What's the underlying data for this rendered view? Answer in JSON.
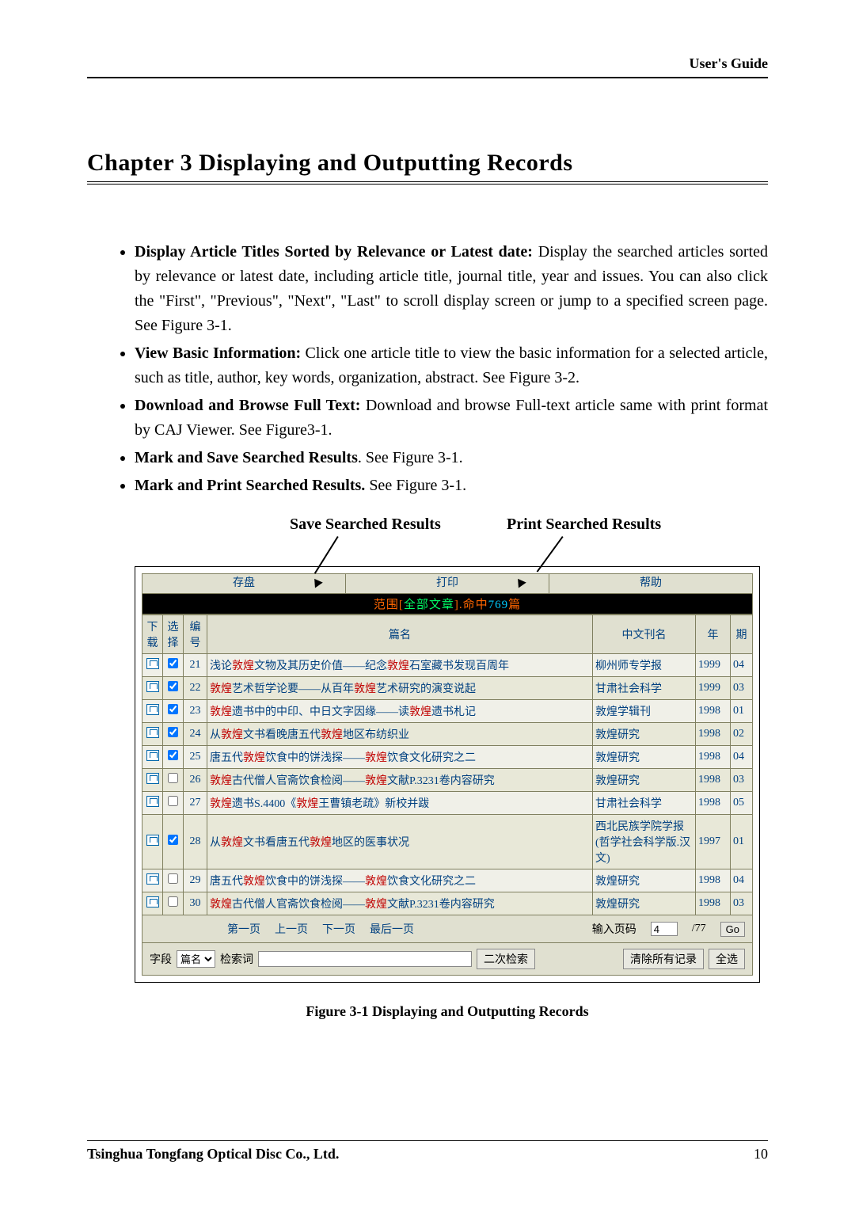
{
  "header_right": "User's Guide",
  "chapter_title": "Chapter 3   Displaying and Outputting Records",
  "bullets": [
    {
      "bold": "Display Article Titles Sorted by Relevance or Latest date:",
      "text": " Display the searched articles sorted by relevance or latest date, including article title, journal title, year and issues. You can also click the \"First\", \"Previous\", \"Next\", \"Last\" to scroll display screen or jump to a specified screen page. See Figure 3-1."
    },
    {
      "bold": "View Basic Information:",
      "text": " Click one article title to view the basic information for a selected article, such as title, author, key words, organization, abstract. See Figure 3-2."
    },
    {
      "bold": "Download and Browse Full Text:",
      "text": " Download and browse Full-text article same with print format by CAJ Viewer. See Figure3-1."
    },
    {
      "bold": "Mark and Save Searched Results",
      "text": ". See Figure 3-1."
    },
    {
      "bold": "Mark and Print Searched Results.",
      "text": " See Figure 3-1."
    }
  ],
  "annotation_save": "Save Searched Results",
  "annotation_print": "Print Searched Results",
  "toolbar": {
    "save": "存盘",
    "print": "打印",
    "help": "帮助"
  },
  "range_prefix": "范围[",
  "range_mid": "全部文章",
  "range_suffix": "].命中",
  "range_count": "769",
  "range_unit": "篇",
  "table_headers": {
    "download": "下载",
    "select": "选择",
    "no": "编号",
    "title": "篇名",
    "journal": "中文刊名",
    "year": "年",
    "issue": "期"
  },
  "rows": [
    {
      "checked": true,
      "no": "21",
      "pre": "浅论",
      "key": "敦煌",
      "mid": "文物及其历史价值——纪念",
      "key2": "敦煌",
      "post": "石室藏书发现百周年",
      "journal": "柳州师专学报",
      "year": "1999",
      "issue": "04"
    },
    {
      "checked": true,
      "no": "22",
      "pre": "",
      "key": "敦煌",
      "mid": "艺术哲学论要——从百年",
      "key2": "敦煌",
      "post": "艺术研究的演变说起",
      "journal": "甘肃社会科学",
      "year": "1999",
      "issue": "03"
    },
    {
      "checked": true,
      "no": "23",
      "pre": "",
      "key": "敦煌",
      "mid": "遗书中的中印、中日文字因缘——读",
      "key2": "敦煌",
      "post": "遗书札记",
      "journal": "敦煌学辑刊",
      "year": "1998",
      "issue": "01"
    },
    {
      "checked": true,
      "no": "24",
      "pre": "从",
      "key": "敦煌",
      "mid": "文书看晚唐五代",
      "key2": "敦煌",
      "post": "地区布纺织业",
      "journal": "敦煌研究",
      "year": "1998",
      "issue": "02"
    },
    {
      "checked": true,
      "no": "25",
      "pre": "唐五代",
      "key": "敦煌",
      "mid": "饮食中的饼浅探——",
      "key2": "敦煌",
      "post": "饮食文化研究之二",
      "journal": "敦煌研究",
      "year": "1998",
      "issue": "04"
    },
    {
      "checked": false,
      "no": "26",
      "pre": "",
      "key": "敦煌",
      "mid": "古代僧人官斋饮食检阅——",
      "key2": "敦煌",
      "post": "文献P.3231卷内容研究",
      "journal": "敦煌研究",
      "year": "1998",
      "issue": "03"
    },
    {
      "checked": false,
      "no": "27",
      "pre": "",
      "key": "敦煌",
      "mid": "遗书S.4400《",
      "key2": "敦煌",
      "post": "王曹镇老疏》新校并跋",
      "journal": "甘肃社会科学",
      "year": "1998",
      "issue": "05"
    },
    {
      "checked": true,
      "no": "28",
      "pre": "从",
      "key": "敦煌",
      "mid": "文书看唐五代",
      "key2": "敦煌",
      "post": "地区的医事状况",
      "journal": "西北民族学院学报(哲学社会科学版.汉文)",
      "year": "1997",
      "issue": "01"
    },
    {
      "checked": false,
      "no": "29",
      "pre": "唐五代",
      "key": "敦煌",
      "mid": "饮食中的饼浅探——",
      "key2": "敦煌",
      "post": "饮食文化研究之二",
      "journal": "敦煌研究",
      "year": "1998",
      "issue": "04"
    },
    {
      "checked": false,
      "no": "30",
      "pre": "",
      "key": "敦煌",
      "mid": "古代僧人官斋饮食检阅——",
      "key2": "敦煌",
      "post": "文献P.3231卷内容研究",
      "journal": "敦煌研究",
      "year": "1998",
      "issue": "03"
    }
  ],
  "pager": {
    "first": "第一页",
    "prev": "上一页",
    "next": "下一页",
    "last": "最后一页",
    "goto_label": "输入页码",
    "page_value": "4",
    "total": "/77",
    "go": "Go"
  },
  "filter": {
    "field_label": "字段",
    "field_value": "篇名",
    "kw_label": "检索词",
    "research": "二次检索",
    "clear": "清除所有记录",
    "select_all": "全选"
  },
  "fig_caption": "Figure 3-1     Displaying and Outputting Records",
  "footer": {
    "company": "Tsinghua Tongfang Optical Disc Co., Ltd.",
    "page": "10"
  },
  "colors": {
    "link": "#004080",
    "keyword": "#c00000",
    "orange": "#ff6600",
    "header_bg": "#e0e0d0",
    "row_odd": "#f0f0e8",
    "row_even": "#e8e8d8",
    "border": "#808060"
  }
}
